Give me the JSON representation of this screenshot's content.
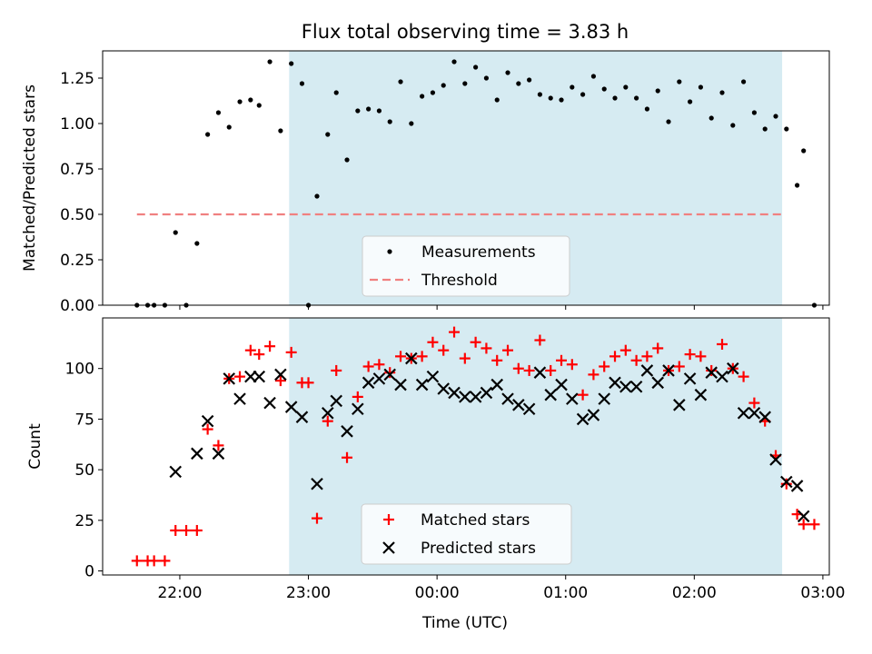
{
  "chart_data": {
    "title": "Flux total observing time = 3.83 h",
    "xlabel": "Time (UTC)",
    "x_unit": "hours since 22:00 UTC",
    "x_ticks": [
      "22:00",
      "23:00",
      "00:00",
      "01:00",
      "02:00",
      "03:00"
    ],
    "xlim": [
      "21:24",
      "03:03"
    ],
    "observing_window": {
      "start": "22:51",
      "end": "02:41",
      "color": "#add8e6"
    },
    "panels": [
      {
        "type": "scatter",
        "ylabel": "Matched/Predicted stars",
        "ylim": [
          0,
          1.4
        ],
        "y_ticks": [
          "0.00",
          "0.25",
          "0.50",
          "0.75",
          "1.00",
          "1.25"
        ],
        "legend_position": "lower-center",
        "threshold": {
          "name": "Threshold",
          "value": 0.5,
          "x_range": [
            "21:40",
            "02:42"
          ],
          "color": "#f08080"
        },
        "series": [
          {
            "name": "Measurements",
            "color": "#000000",
            "marker": "dot",
            "points": [
              [
                "21:40",
                0.0
              ],
              [
                "21:45",
                0.0
              ],
              [
                "21:48",
                0.0
              ],
              [
                "21:53",
                0.0
              ],
              [
                "21:58",
                0.4
              ],
              [
                "22:03",
                0.0
              ],
              [
                "22:08",
                0.34
              ],
              [
                "22:13",
                0.94
              ],
              [
                "22:18",
                1.06
              ],
              [
                "22:23",
                0.98
              ],
              [
                "22:28",
                1.12
              ],
              [
                "22:33",
                1.13
              ],
              [
                "22:37",
                1.1
              ],
              [
                "22:42",
                1.34
              ],
              [
                "22:47",
                0.96
              ],
              [
                "22:52",
                1.33
              ],
              [
                "22:57",
                1.22
              ],
              [
                "23:00",
                0.0
              ],
              [
                "23:04",
                0.6
              ],
              [
                "23:09",
                0.94
              ],
              [
                "23:13",
                1.17
              ],
              [
                "23:18",
                0.8
              ],
              [
                "23:23",
                1.07
              ],
              [
                "23:28",
                1.08
              ],
              [
                "23:33",
                1.07
              ],
              [
                "23:38",
                1.01
              ],
              [
                "23:43",
                1.23
              ],
              [
                "23:48",
                1.0
              ],
              [
                "23:53",
                1.15
              ],
              [
                "23:58",
                1.17
              ],
              [
                "00:03",
                1.21
              ],
              [
                "00:08",
                1.34
              ],
              [
                "00:13",
                1.22
              ],
              [
                "00:18",
                1.31
              ],
              [
                "00:23",
                1.25
              ],
              [
                "00:28",
                1.13
              ],
              [
                "00:33",
                1.28
              ],
              [
                "00:38",
                1.22
              ],
              [
                "00:43",
                1.24
              ],
              [
                "00:48",
                1.16
              ],
              [
                "00:53",
                1.14
              ],
              [
                "00:58",
                1.13
              ],
              [
                "01:03",
                1.2
              ],
              [
                "01:08",
                1.16
              ],
              [
                "01:13",
                1.26
              ],
              [
                "01:18",
                1.19
              ],
              [
                "01:23",
                1.14
              ],
              [
                "01:28",
                1.2
              ],
              [
                "01:33",
                1.14
              ],
              [
                "01:38",
                1.08
              ],
              [
                "01:43",
                1.18
              ],
              [
                "01:48",
                1.01
              ],
              [
                "01:53",
                1.23
              ],
              [
                "01:58",
                1.12
              ],
              [
                "02:03",
                1.2
              ],
              [
                "02:08",
                1.03
              ],
              [
                "02:13",
                1.17
              ],
              [
                "02:18",
                0.99
              ],
              [
                "02:23",
                1.23
              ],
              [
                "02:28",
                1.06
              ],
              [
                "02:33",
                0.97
              ],
              [
                "02:38",
                1.04
              ],
              [
                "02:43",
                0.97
              ],
              [
                "02:48",
                0.66
              ],
              [
                "02:51",
                0.85
              ],
              [
                "02:56",
                0.0
              ]
            ]
          }
        ]
      },
      {
        "type": "scatter",
        "ylabel": "Count",
        "ylim": [
          -2,
          125
        ],
        "y_ticks": [
          "0",
          "25",
          "50",
          "75",
          "100"
        ],
        "legend_position": "lower-center",
        "series": [
          {
            "name": "Matched stars",
            "color": "#ff0000",
            "marker": "plus",
            "points": [
              [
                "21:40",
                5
              ],
              [
                "21:45",
                5
              ],
              [
                "21:48",
                5
              ],
              [
                "21:53",
                5
              ],
              [
                "21:58",
                20
              ],
              [
                "22:03",
                20
              ],
              [
                "22:08",
                20
              ],
              [
                "22:13",
                70
              ],
              [
                "22:18",
                62
              ],
              [
                "22:23",
                95
              ],
              [
                "22:28",
                96
              ],
              [
                "22:33",
                109
              ],
              [
                "22:37",
                107
              ],
              [
                "22:42",
                111
              ],
              [
                "22:47",
                94
              ],
              [
                "22:52",
                108
              ],
              [
                "22:57",
                93
              ],
              [
                "23:00",
                93
              ],
              [
                "23:04",
                26
              ],
              [
                "23:09",
                74
              ],
              [
                "23:13",
                99
              ],
              [
                "23:18",
                56
              ],
              [
                "23:23",
                86
              ],
              [
                "23:28",
                101
              ],
              [
                "23:33",
                102
              ],
              [
                "23:38",
                98
              ],
              [
                "23:43",
                106
              ],
              [
                "23:48",
                105
              ],
              [
                "23:53",
                106
              ],
              [
                "23:58",
                113
              ],
              [
                "00:03",
                109
              ],
              [
                "00:08",
                118
              ],
              [
                "00:13",
                105
              ],
              [
                "00:18",
                113
              ],
              [
                "00:23",
                110
              ],
              [
                "00:28",
                104
              ],
              [
                "00:33",
                109
              ],
              [
                "00:38",
                100
              ],
              [
                "00:43",
                99
              ],
              [
                "00:48",
                114
              ],
              [
                "00:53",
                99
              ],
              [
                "00:58",
                104
              ],
              [
                "01:03",
                102
              ],
              [
                "01:08",
                87
              ],
              [
                "01:13",
                97
              ],
              [
                "01:18",
                101
              ],
              [
                "01:23",
                106
              ],
              [
                "01:28",
                109
              ],
              [
                "01:33",
                104
              ],
              [
                "01:38",
                106
              ],
              [
                "01:43",
                110
              ],
              [
                "01:48",
                99
              ],
              [
                "01:53",
                101
              ],
              [
                "01:58",
                107
              ],
              [
                "02:03",
                106
              ],
              [
                "02:08",
                99
              ],
              [
                "02:13",
                112
              ],
              [
                "02:18",
                100
              ],
              [
                "02:23",
                96
              ],
              [
                "02:28",
                83
              ],
              [
                "02:33",
                74
              ],
              [
                "02:38",
                57
              ],
              [
                "02:43",
                43
              ],
              [
                "02:48",
                28
              ],
              [
                "02:51",
                23
              ],
              [
                "02:56",
                23
              ]
            ]
          },
          {
            "name": "Predicted stars",
            "color": "#000000",
            "marker": "x",
            "points": [
              [
                "21:58",
                49
              ],
              [
                "22:08",
                58
              ],
              [
                "22:13",
                74
              ],
              [
                "22:18",
                58
              ],
              [
                "22:23",
                95
              ],
              [
                "22:28",
                85
              ],
              [
                "22:33",
                96
              ],
              [
                "22:37",
                96
              ],
              [
                "22:42",
                83
              ],
              [
                "22:47",
                97
              ],
              [
                "22:52",
                81
              ],
              [
                "22:57",
                76
              ],
              [
                "23:04",
                43
              ],
              [
                "23:09",
                78
              ],
              [
                "23:13",
                84
              ],
              [
                "23:18",
                69
              ],
              [
                "23:23",
                80
              ],
              [
                "23:28",
                93
              ],
              [
                "23:33",
                95
              ],
              [
                "23:38",
                97
              ],
              [
                "23:43",
                92
              ],
              [
                "23:48",
                105
              ],
              [
                "23:53",
                92
              ],
              [
                "23:58",
                96
              ],
              [
                "00:03",
                90
              ],
              [
                "00:08",
                88
              ],
              [
                "00:13",
                86
              ],
              [
                "00:18",
                86
              ],
              [
                "00:23",
                88
              ],
              [
                "00:28",
                92
              ],
              [
                "00:33",
                85
              ],
              [
                "00:38",
                82
              ],
              [
                "00:43",
                80
              ],
              [
                "00:48",
                98
              ],
              [
                "00:53",
                87
              ],
              [
                "00:58",
                92
              ],
              [
                "01:03",
                85
              ],
              [
                "01:08",
                75
              ],
              [
                "01:13",
                77
              ],
              [
                "01:18",
                85
              ],
              [
                "01:23",
                93
              ],
              [
                "01:28",
                91
              ],
              [
                "01:33",
                91
              ],
              [
                "01:38",
                99
              ],
              [
                "01:43",
                93
              ],
              [
                "01:48",
                99
              ],
              [
                "01:53",
                82
              ],
              [
                "01:58",
                95
              ],
              [
                "02:03",
                87
              ],
              [
                "02:08",
                98
              ],
              [
                "02:13",
                96
              ],
              [
                "02:18",
                100
              ],
              [
                "02:23",
                78
              ],
              [
                "02:28",
                78
              ],
              [
                "02:33",
                76
              ],
              [
                "02:38",
                55
              ],
              [
                "02:43",
                44
              ],
              [
                "02:48",
                42
              ],
              [
                "02:51",
                27
              ]
            ]
          }
        ]
      }
    ]
  }
}
